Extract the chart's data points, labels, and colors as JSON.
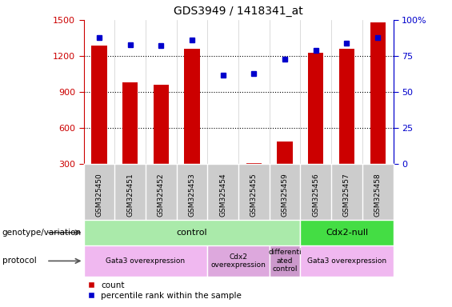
{
  "title": "GDS3949 / 1418341_at",
  "samples": [
    "GSM325450",
    "GSM325451",
    "GSM325452",
    "GSM325453",
    "GSM325454",
    "GSM325455",
    "GSM325459",
    "GSM325456",
    "GSM325457",
    "GSM325458"
  ],
  "counts": [
    1290,
    980,
    960,
    1260,
    270,
    310,
    490,
    1230,
    1260,
    1480
  ],
  "percentile_ranks": [
    88,
    83,
    82,
    86,
    62,
    63,
    73,
    79,
    84,
    88
  ],
  "ylim_left": [
    300,
    1500
  ],
  "ylim_right": [
    0,
    100
  ],
  "bar_color": "#cc0000",
  "dot_color": "#0000cc",
  "tick_color_left": "#cc0000",
  "tick_color_right": "#0000cc",
  "genotype_groups": [
    {
      "label": "control",
      "start": 0,
      "end": 7,
      "color": "#aaeaaa"
    },
    {
      "label": "Cdx2-null",
      "start": 7,
      "end": 10,
      "color": "#44dd44"
    }
  ],
  "protocol_groups": [
    {
      "label": "Gata3 overexpression",
      "start": 0,
      "end": 4,
      "color": "#f0b8f0"
    },
    {
      "label": "Cdx2\noverexpression",
      "start": 4,
      "end": 6,
      "color": "#dda8dd"
    },
    {
      "label": "differenti\nated\ncontrol",
      "start": 6,
      "end": 7,
      "color": "#cc99cc"
    },
    {
      "label": "Gata3 overexpression",
      "start": 7,
      "end": 10,
      "color": "#f0b8f0"
    }
  ],
  "bar_width": 0.5,
  "dotted_line_values": [
    1200,
    900,
    600
  ],
  "samplebox_color": "#cccccc",
  "samplebox_border": "#ffffff",
  "left_labels": [
    {
      "text": "genotype/variation",
      "row": "geno"
    },
    {
      "text": "protocol",
      "row": "proto"
    }
  ],
  "legend": [
    {
      "color": "#cc0000",
      "label": "count"
    },
    {
      "color": "#0000cc",
      "label": "percentile rank within the sample"
    }
  ]
}
